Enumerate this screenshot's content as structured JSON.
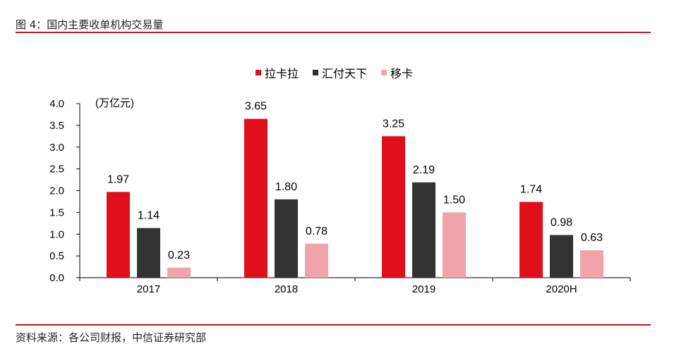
{
  "title": "图 4：国内主要收单机构交易量",
  "source": "资料来源：各公司财报，中信证券研究部",
  "chart_data": {
    "type": "bar",
    "unit_label": "(万亿元)",
    "categories": [
      "2017",
      "2018",
      "2019",
      "2020H"
    ],
    "series": [
      {
        "name": "拉卡拉",
        "color": "#e0101b",
        "values": [
          1.97,
          3.65,
          3.25,
          1.74
        ]
      },
      {
        "name": "汇付天下",
        "color": "#333333",
        "values": [
          1.14,
          1.8,
          2.19,
          0.98
        ]
      },
      {
        "name": "移卡",
        "color": "#f0a3ab",
        "values": [
          0.23,
          0.78,
          1.5,
          0.63
        ]
      }
    ],
    "ylim": [
      0,
      4.0
    ],
    "yticks": [
      "0.0",
      "0.5",
      "1.0",
      "1.5",
      "2.0",
      "2.5",
      "3.0",
      "3.5",
      "4.0"
    ],
    "legend": "top-center",
    "grid": false
  }
}
